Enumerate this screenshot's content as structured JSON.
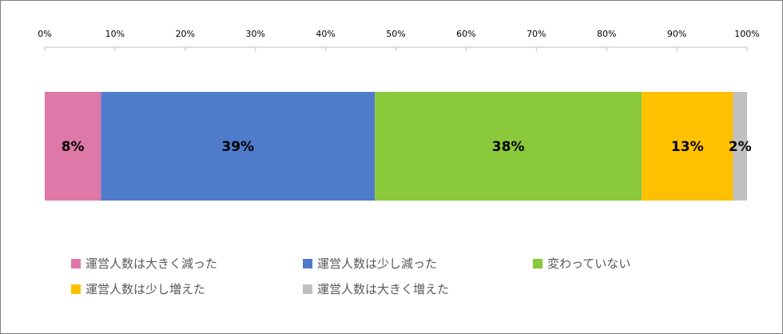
{
  "chart_data": {
    "type": "bar",
    "orientation": "horizontal",
    "stacked": true,
    "x_ticks": [
      "0%",
      "10%",
      "20%",
      "30%",
      "40%",
      "50%",
      "60%",
      "70%",
      "80%",
      "90%",
      "100%"
    ],
    "xlim": [
      0,
      100
    ],
    "series": [
      {
        "name": "運営人数は大きく減った",
        "value": 8,
        "label": "8%",
        "color": "#de78a8"
      },
      {
        "name": "運営人数は少し減った",
        "value": 39,
        "label": "39%",
        "color": "#4f7bcb"
      },
      {
        "name": "変わっていない",
        "value": 38,
        "label": "38%",
        "color": "#8ac93b"
      },
      {
        "name": "運営人数は少し増えた",
        "value": 13,
        "label": "13%",
        "color": "#ffc000"
      },
      {
        "name": "運営人数は大きく増えた",
        "value": 2,
        "label": "2%",
        "color": "#c0c0c0"
      }
    ],
    "legend_position": "bottom"
  }
}
